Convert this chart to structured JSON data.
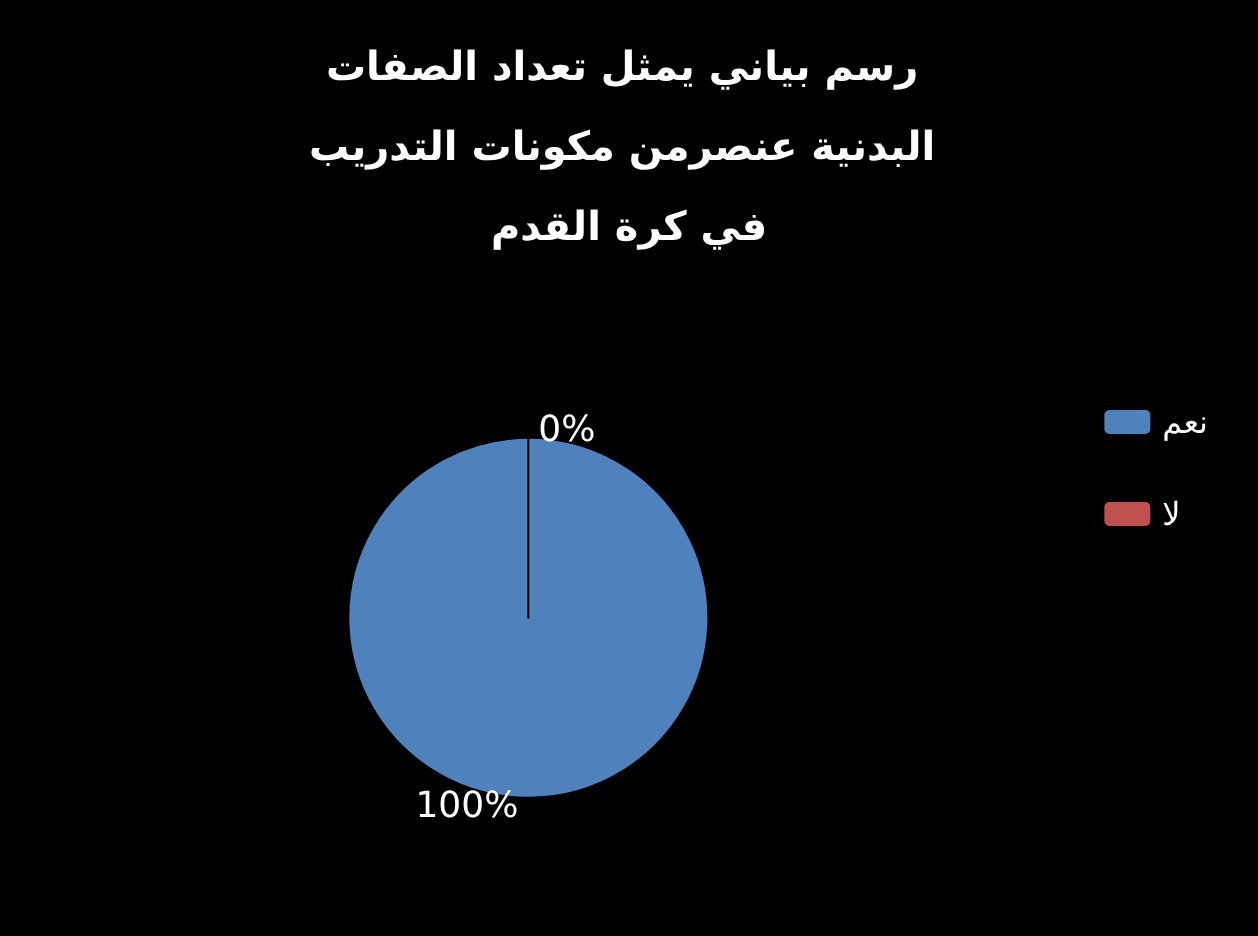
{
  "chart_data": {
    "type": "pie",
    "title": "رسم بياني يمثل تعداد الصفات البدنية عنصرمن مكونات التدريب في كرة القدم",
    "categories": [
      "نعم",
      "لا"
    ],
    "values": [
      100,
      0
    ],
    "colors": [
      "#4f81bd",
      "#c0504d"
    ],
    "value_labels": [
      "100%",
      "0%"
    ],
    "legend": "right"
  }
}
